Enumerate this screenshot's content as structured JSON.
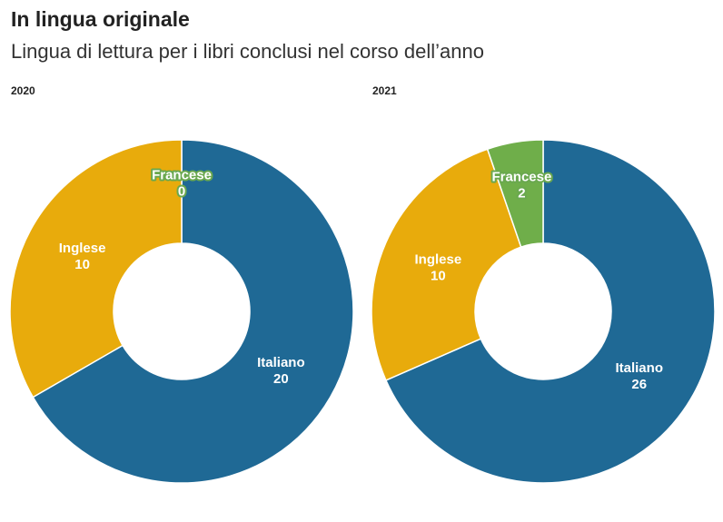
{
  "title": "In lingua originale",
  "subtitle": "Lingua di lettura per i libri conclusi nel corso dell’anno",
  "colors": {
    "Italiano": "#1f6995",
    "Inglese": "#e8ab0c",
    "Francese": "#6fae4a"
  },
  "chart_data": [
    {
      "type": "pie",
      "title": "2020",
      "categories": [
        "Italiano",
        "Inglese",
        "Francese"
      ],
      "values": [
        20,
        10,
        0
      ],
      "donut": true
    },
    {
      "type": "pie",
      "title": "2021",
      "categories": [
        "Italiano",
        "Inglese",
        "Francese"
      ],
      "values": [
        26,
        10,
        2
      ],
      "donut": true
    }
  ]
}
